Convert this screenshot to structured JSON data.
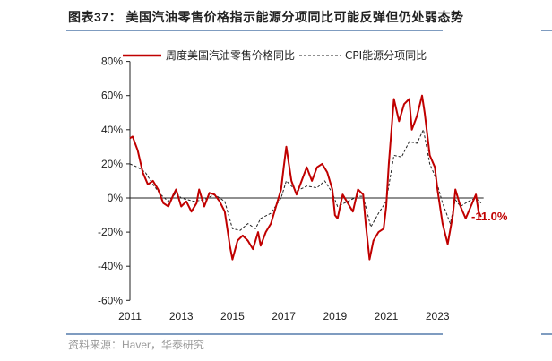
{
  "header": {
    "title": "图表37：  美国汽油零售价格指示能源分项同比可能反弹但仍处弱态势"
  },
  "footer": {
    "source": "资料来源：Haver，华泰研究"
  },
  "chart_data": {
    "type": "line",
    "title": "美国汽油零售价格指示能源分项同比可能反弹但仍处弱态势",
    "xlabel": "",
    "ylabel": "",
    "ylim": [
      -60,
      80
    ],
    "yticks": [
      -60,
      -40,
      -20,
      0,
      20,
      40,
      60,
      80
    ],
    "ytick_labels": [
      "-60%",
      "-40%",
      "-20%",
      "0%",
      "20%",
      "40%",
      "60%",
      "80%"
    ],
    "xlim": [
      2011,
      2024.8
    ],
    "xticks": [
      2011,
      2013,
      2015,
      2017,
      2019,
      2021,
      2023
    ],
    "xtick_labels": [
      "2011",
      "2013",
      "2015",
      "2017",
      "2019",
      "2021",
      "2023"
    ],
    "legend_position": "top",
    "annotation": {
      "text": "-11.0%",
      "color": "#c00000"
    },
    "series": [
      {
        "name": "周度美国汽油零售价格同比",
        "color": "#c00000",
        "style": "solid",
        "x": [
          2011.0,
          2011.1,
          2011.3,
          2011.5,
          2011.7,
          2011.9,
          2012.1,
          2012.3,
          2012.5,
          2012.7,
          2012.8,
          2013.0,
          2013.2,
          2013.4,
          2013.6,
          2013.7,
          2013.9,
          2014.1,
          2014.3,
          2014.5,
          2014.7,
          2014.9,
          2015.0,
          2015.2,
          2015.4,
          2015.6,
          2015.8,
          2016.0,
          2016.1,
          2016.3,
          2016.5,
          2016.7,
          2016.9,
          2017.0,
          2017.1,
          2017.3,
          2017.5,
          2017.7,
          2017.9,
          2018.1,
          2018.3,
          2018.5,
          2018.7,
          2018.9,
          2019.0,
          2019.1,
          2019.3,
          2019.5,
          2019.7,
          2019.9,
          2020.1,
          2020.2,
          2020.35,
          2020.5,
          2020.7,
          2020.9,
          2021.0,
          2021.1,
          2021.3,
          2021.5,
          2021.7,
          2021.9,
          2022.0,
          2022.2,
          2022.4,
          2022.5,
          2022.7,
          2022.9,
          2023.0,
          2023.2,
          2023.4,
          2023.6,
          2023.7,
          2023.9,
          2024.1,
          2024.3,
          2024.5,
          2024.6,
          2024.7
        ],
        "y": [
          35,
          36,
          28,
          15,
          8,
          10,
          5,
          -3,
          -5,
          2,
          5,
          -5,
          -2,
          -8,
          -3,
          5,
          -5,
          3,
          2,
          -2,
          -8,
          -28,
          -36,
          -25,
          -22,
          -25,
          -30,
          -20,
          -28,
          -20,
          -15,
          -5,
          5,
          18,
          30,
          10,
          2,
          10,
          18,
          10,
          18,
          20,
          15,
          5,
          -10,
          -12,
          2,
          -3,
          -8,
          5,
          2,
          -15,
          -36,
          -25,
          -20,
          -18,
          -5,
          20,
          58,
          45,
          55,
          58,
          40,
          48,
          60,
          50,
          25,
          18,
          5,
          -15,
          -27,
          -10,
          5,
          -5,
          -12,
          -5,
          2,
          -8,
          -11
        ]
      },
      {
        "name": "CPI能源分项同比",
        "color": "#222222",
        "style": "dashed",
        "x": [
          2011.0,
          2011.3,
          2011.6,
          2011.9,
          2012.2,
          2012.5,
          2012.8,
          2013.0,
          2013.5,
          2013.9,
          2014.3,
          2014.7,
          2015.0,
          2015.3,
          2015.6,
          2015.9,
          2016.1,
          2016.5,
          2016.9,
          2017.1,
          2017.5,
          2017.9,
          2018.3,
          2018.6,
          2018.9,
          2019.1,
          2019.5,
          2019.9,
          2020.1,
          2020.4,
          2020.7,
          2021.0,
          2021.3,
          2021.6,
          2021.9,
          2022.2,
          2022.45,
          2022.7,
          2022.9,
          2023.2,
          2023.5,
          2023.7,
          2023.9,
          2024.2,
          2024.5,
          2024.7
        ],
        "y": [
          20,
          18,
          15,
          8,
          2,
          -2,
          3,
          0,
          -2,
          -1,
          2,
          -2,
          -18,
          -19,
          -15,
          -18,
          -12,
          -9,
          0,
          10,
          4,
          7,
          6,
          10,
          3,
          -5,
          -2,
          1,
          1,
          -17,
          -9,
          -2,
          25,
          24,
          33,
          32,
          40,
          20,
          13,
          -3,
          -15,
          -1,
          -5,
          -2,
          0,
          -3
        ]
      }
    ]
  }
}
